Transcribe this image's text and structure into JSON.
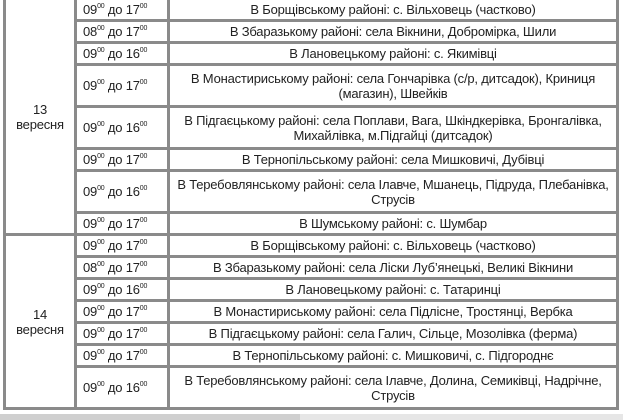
{
  "days": [
    {
      "day": "13",
      "month": "вересня",
      "rows": [
        {
          "from": "09",
          "to": "17",
          "text": "В Борщівському районі: с. Вільховець (частково)"
        },
        {
          "from": "08",
          "to": "17",
          "text": "В Збаразькому районі: села Вікнини, Добромірка, Шили"
        },
        {
          "from": "09",
          "to": "16",
          "text": "В Лановецькому районі: с. Якимівці"
        },
        {
          "from": "09",
          "to": "17",
          "text": "В Монастириському районі: села Гончарівка (с/р, дитсадок), Криниця (магазин), Швейків"
        },
        {
          "from": "09",
          "to": "16",
          "text": "В Підгаєцькому районі: села Поплави, Вага, Шкіндкерівка, Бронгалівка, Михайлівка, м.Підгайці (дитсадок)"
        },
        {
          "from": "09",
          "to": "17",
          "text": "В Тернопільському районі: села Мишковичі, Дубівці"
        },
        {
          "from": "09",
          "to": "16",
          "text": "В Теребовлянському районі: села Ілавче, Мшанець, Підруда, Плебанівка, Струсів"
        },
        {
          "from": "09",
          "to": "17",
          "text": "В Шумському районі: с. Шумбар"
        }
      ]
    },
    {
      "day": "14",
      "month": "вересня",
      "rows": [
        {
          "from": "09",
          "to": "17",
          "text": "В Борщівському районі: с. Вільховець (частково)"
        },
        {
          "from": "08",
          "to": "17",
          "text": "В Збаразькому районі: села Ліски Луб’янецькі, Великі Вікнини"
        },
        {
          "from": "09",
          "to": "16",
          "text": "В Лановецькому районі: с. Татаринці"
        },
        {
          "from": "09",
          "to": "17",
          "text": "В Монастириському районі: села Підлісне, Тростянці, Вербка"
        },
        {
          "from": "09",
          "to": "17",
          "text": "В Підгаєцькому районі: села Галич, Сільце, Мозолівка (ферма)"
        },
        {
          "from": "09",
          "to": "17",
          "text": "В Тернопільському районі: с. Мишковичі, с. Підгороднє"
        },
        {
          "from": "09",
          "to": "16",
          "text": "В Теребовлянському районі: села Ілавче, Долина, Семиківці, Надрічне, Струсів"
        }
      ]
    }
  ],
  "labels": {
    "until": "до",
    "minutes": "00"
  }
}
